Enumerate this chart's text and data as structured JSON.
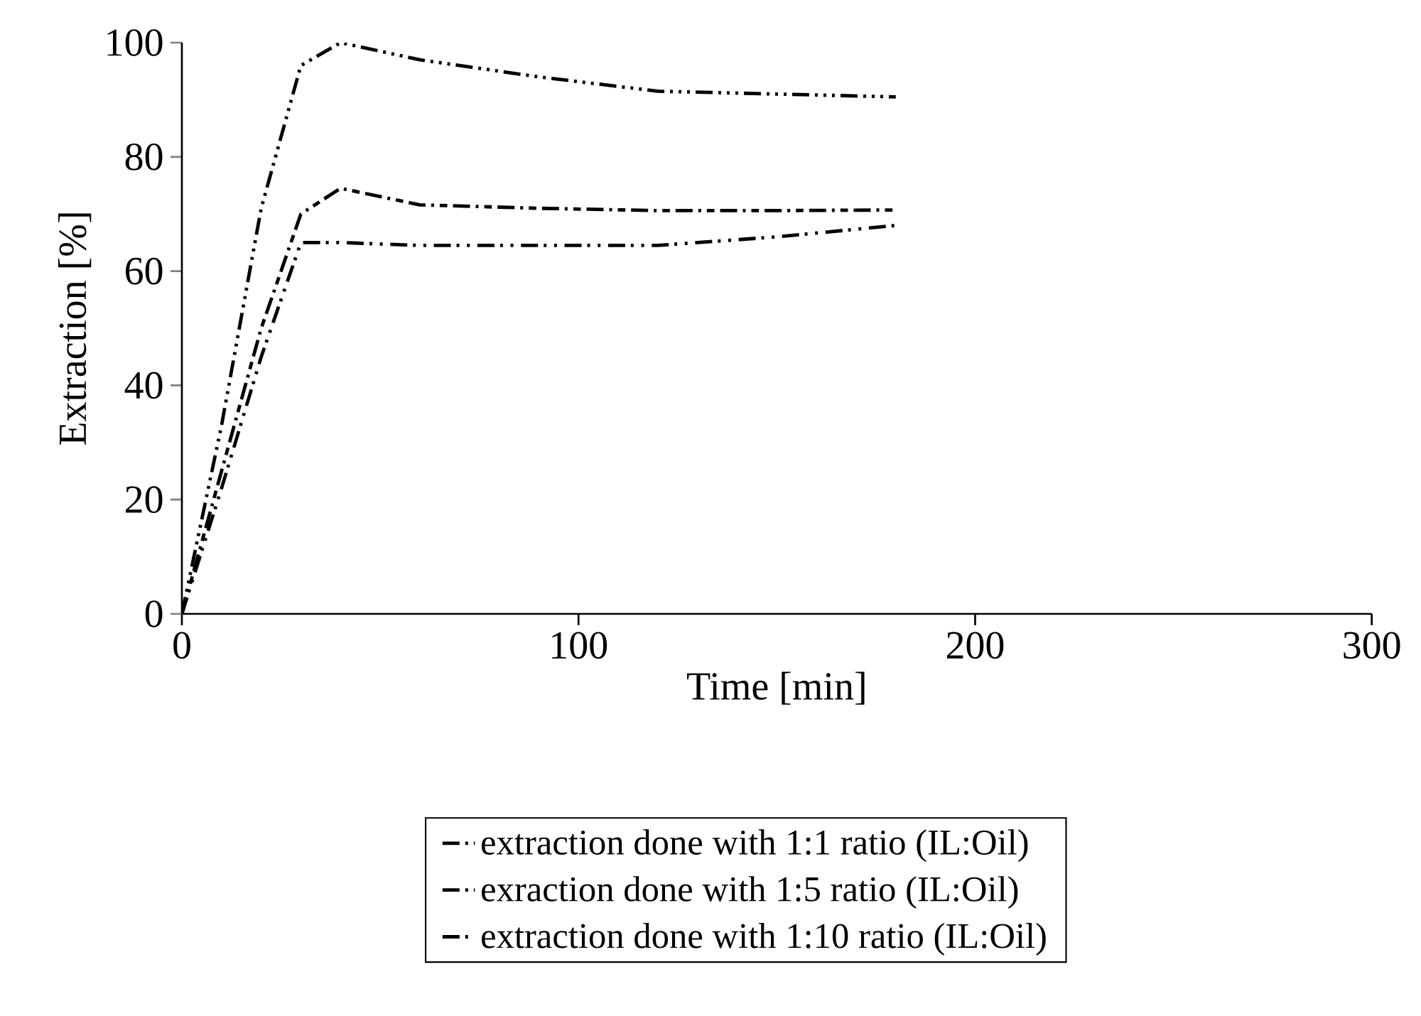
{
  "chart_data": {
    "type": "line",
    "xlabel": "Time [min]",
    "ylabel": "Extraction [%]",
    "x": [
      0,
      10,
      20,
      30,
      40,
      60,
      90,
      120,
      150,
      180
    ],
    "series": [
      {
        "name": "extraction done with 1:1 ratio (IL:Oil)",
        "color": "#000000",
        "values": [
          0,
          33,
          71,
          96,
          100,
          97,
          94,
          91.5,
          91,
          90.5
        ]
      },
      {
        "name": "exraction done with 1:5 ratio (IL:Oil)",
        "color": "#000000",
        "values": [
          0,
          25,
          50,
          70,
          74.5,
          71.6,
          71,
          70.6,
          70.6,
          70.7
        ]
      },
      {
        "name": "extraction done with  1:10 ratio (IL:Oil)",
        "color": "#000000",
        "values": [
          0,
          22,
          45,
          65,
          65,
          64.5,
          64.5,
          64.5,
          66,
          68
        ]
      }
    ],
    "xlim": [
      0,
      300
    ],
    "ylim": [
      0,
      100
    ],
    "xticks": [
      0,
      100,
      200,
      300
    ],
    "yticks": [
      0,
      20,
      40,
      60,
      80,
      100
    ],
    "grid": false,
    "legend": "bottom",
    "marker": "none",
    "line_style": "dashed"
  }
}
